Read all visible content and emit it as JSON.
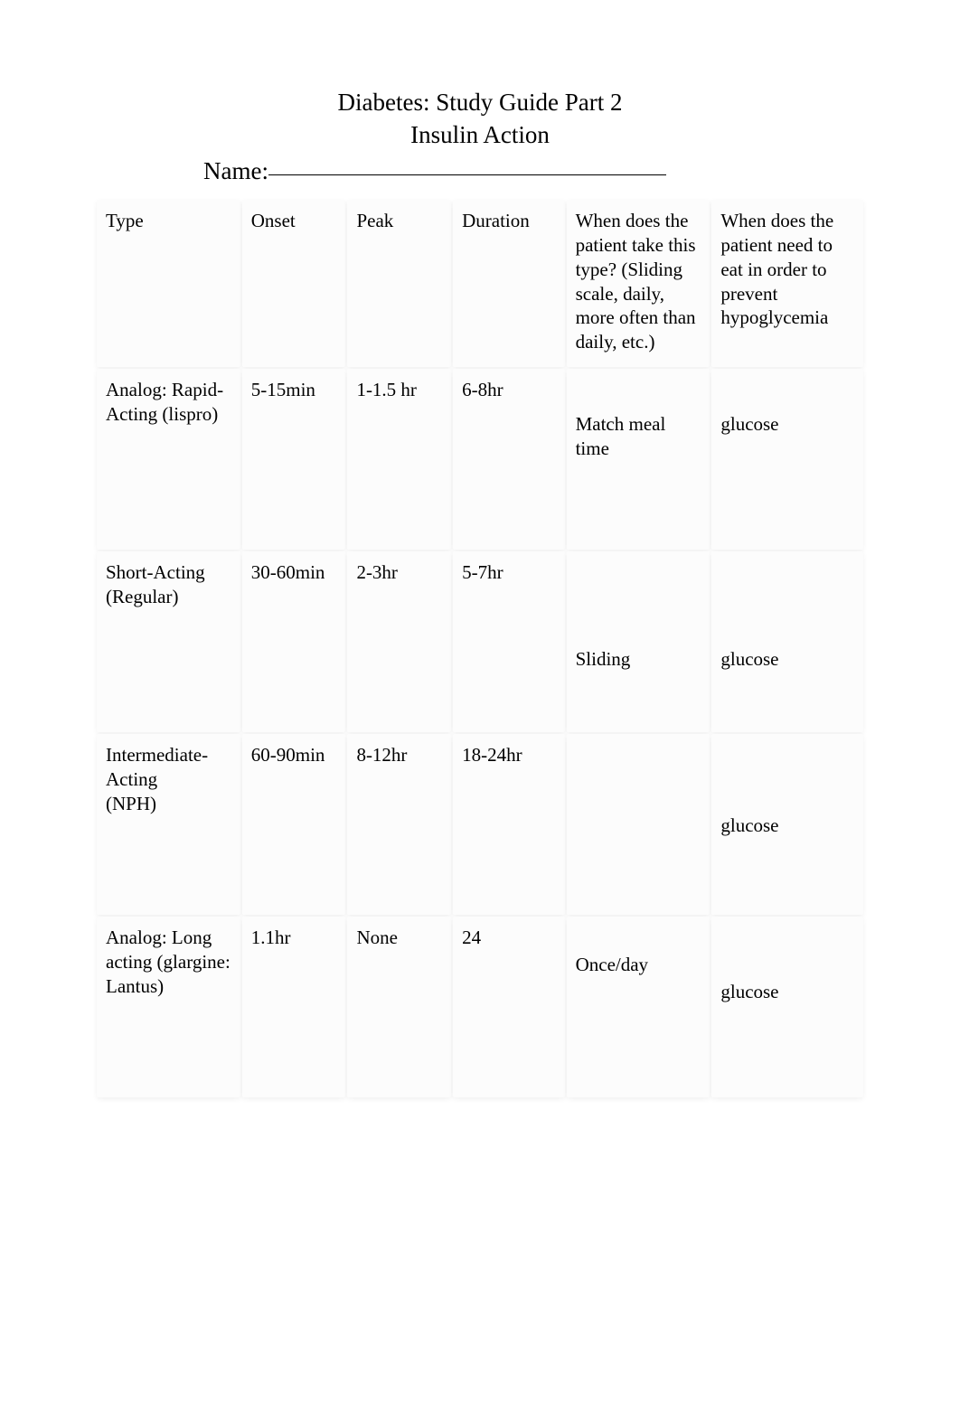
{
  "title_line1": "Diabetes:  Study Guide Part 2",
  "title_line2": "Insulin Action",
  "name_label": "Name:",
  "table": {
    "header": {
      "type": "Type",
      "onset": "Onset",
      "peak": "Peak",
      "duration": "Duration",
      "when_take": "When does the patient take this type? (Sliding scale, daily, more often than daily, etc.)",
      "when_eat": "When does the patient need to eat in order to prevent hypoglycemia"
    },
    "rows": [
      {
        "type": "Analog:  Rapid-Acting (lispro)",
        "onset": "5-15min",
        "peak": "1-1.5 hr",
        "duration": "6-8hr",
        "when_take": "Match meal time",
        "when_eat": "glucose"
      },
      {
        "type": "Short-Acting (Regular)",
        "onset": "30-60min",
        "peak": "2-3hr",
        "duration": "5-7hr",
        "when_take": "Sliding",
        "when_eat": "glucose"
      },
      {
        "type": "Intermediate-Acting\n(NPH)",
        "onset": "60-90min",
        "peak": "8-12hr",
        "duration": "18-24hr",
        "when_take": "",
        "when_eat": "glucose"
      },
      {
        "type": "Analog:  Long acting (glargine: Lantus)",
        "onset": "1.1hr",
        "peak": "None",
        "duration": "24",
        "when_take": "Once/day",
        "when_eat": "glucose"
      }
    ]
  }
}
